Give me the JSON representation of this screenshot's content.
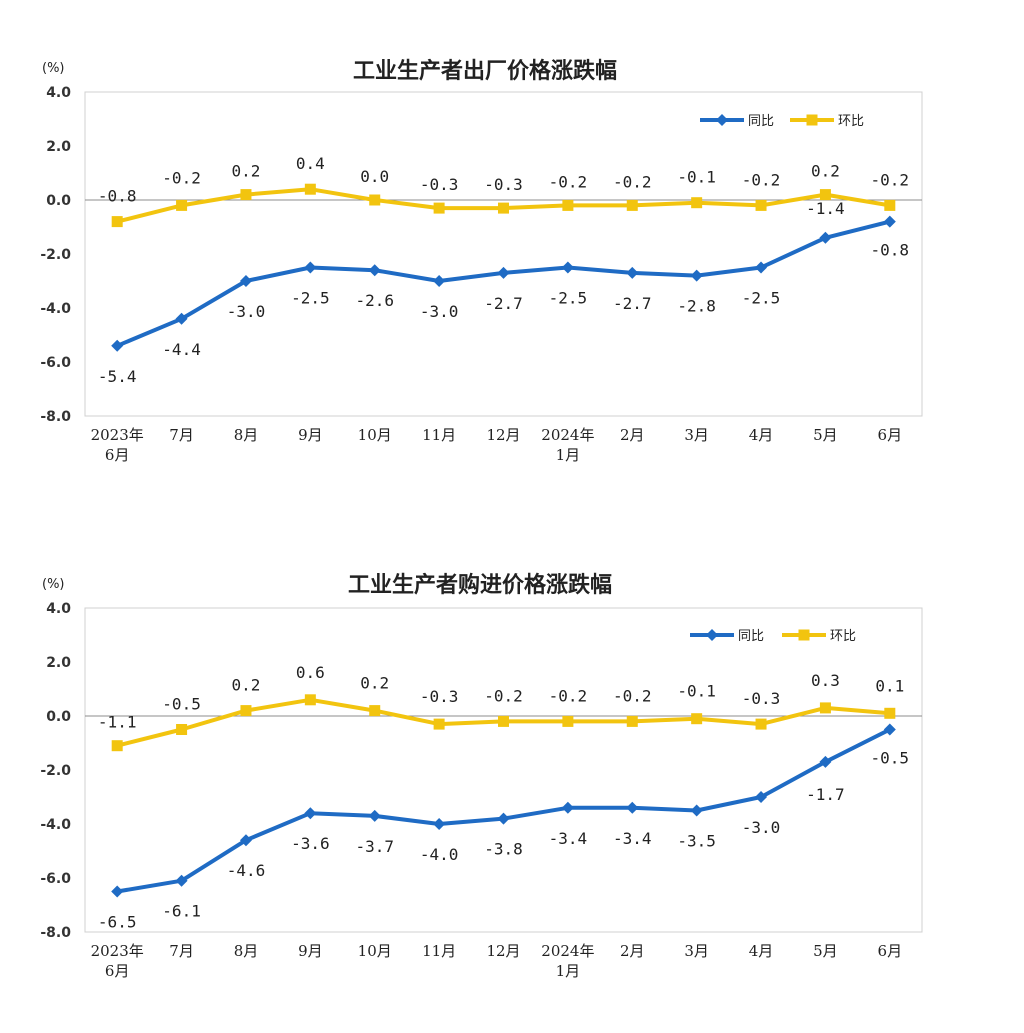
{
  "chart_data": [
    {
      "type": "line",
      "title": "工业生产者出厂价格涨跌幅",
      "ylabel": "(%)",
      "ylim": [
        -8.0,
        4.0
      ],
      "yticks": [
        "4.0",
        "2.0",
        "0.0",
        "-2.0",
        "-4.0",
        "-6.0",
        "-8.0"
      ],
      "categories": [
        [
          "2023年",
          "6月"
        ],
        [
          "7月"
        ],
        [
          "8月"
        ],
        [
          "9月"
        ],
        [
          "10月"
        ],
        [
          "11月"
        ],
        [
          "12月"
        ],
        [
          "2024年",
          "1月"
        ],
        [
          "2月"
        ],
        [
          "3月"
        ],
        [
          "4月"
        ],
        [
          "5月"
        ],
        [
          "6月"
        ]
      ],
      "series": [
        {
          "name": "同比",
          "color": "#1F6BC4",
          "marker": "diamond",
          "values": [
            -5.4,
            -4.4,
            -3.0,
            -2.5,
            -2.6,
            -3.0,
            -2.7,
            -2.5,
            -2.7,
            -2.8,
            -2.5,
            -1.4,
            -0.8
          ],
          "labels": [
            "-5.4",
            "-4.4",
            "-3.0",
            "-2.5",
            "-2.6",
            "-3.0",
            "-2.7",
            "-2.5",
            "-2.7",
            "-2.8",
            "-2.5",
            "-1.4",
            "-0.8"
          ]
        },
        {
          "name": "环比",
          "color": "#F2C40F",
          "marker": "square",
          "values": [
            -0.8,
            -0.2,
            0.2,
            0.4,
            0.0,
            -0.3,
            -0.3,
            -0.2,
            -0.2,
            -0.1,
            -0.2,
            0.2,
            -0.2
          ],
          "labels": [
            "-0.8",
            "-0.2",
            "0.2",
            "0.4",
            "0.0",
            "-0.3",
            "-0.3",
            "-0.2",
            "-0.2",
            "-0.1",
            "-0.2",
            "0.2",
            "-0.2"
          ]
        }
      ]
    },
    {
      "type": "line",
      "title": "工业生产者购进价格涨跌幅",
      "ylabel": "(%)",
      "ylim": [
        -8.0,
        4.0
      ],
      "yticks": [
        "4.0",
        "2.0",
        "0.0",
        "-2.0",
        "-4.0",
        "-6.0",
        "-8.0"
      ],
      "categories": [
        [
          "2023年",
          "6月"
        ],
        [
          "7月"
        ],
        [
          "8月"
        ],
        [
          "9月"
        ],
        [
          "10月"
        ],
        [
          "11月"
        ],
        [
          "12月"
        ],
        [
          "2024年",
          "1月"
        ],
        [
          "2月"
        ],
        [
          "3月"
        ],
        [
          "4月"
        ],
        [
          "5月"
        ],
        [
          "6月"
        ]
      ],
      "series": [
        {
          "name": "同比",
          "color": "#1F6BC4",
          "marker": "diamond",
          "values": [
            -6.5,
            -6.1,
            -4.6,
            -3.6,
            -3.7,
            -4.0,
            -3.8,
            -3.4,
            -3.4,
            -3.5,
            -3.0,
            -1.7,
            -0.5
          ],
          "labels": [
            "-6.5",
            "-6.1",
            "-4.6",
            "-3.6",
            "-3.7",
            "-4.0",
            "-3.8",
            "-3.4",
            "-3.4",
            "-3.5",
            "-3.0",
            "-1.7",
            "-0.5"
          ]
        },
        {
          "name": "环比",
          "color": "#F2C40F",
          "marker": "square",
          "values": [
            -1.1,
            -0.5,
            0.2,
            0.6,
            0.2,
            -0.3,
            -0.2,
            -0.2,
            -0.2,
            -0.1,
            -0.3,
            0.3,
            0.1
          ],
          "labels": [
            "-1.1",
            "-0.5",
            "0.2",
            "0.6",
            "0.2",
            "-0.3",
            "-0.2",
            "-0.2",
            "-0.2",
            "-0.1",
            "-0.3",
            "0.3",
            "0.1"
          ]
        }
      ]
    }
  ]
}
